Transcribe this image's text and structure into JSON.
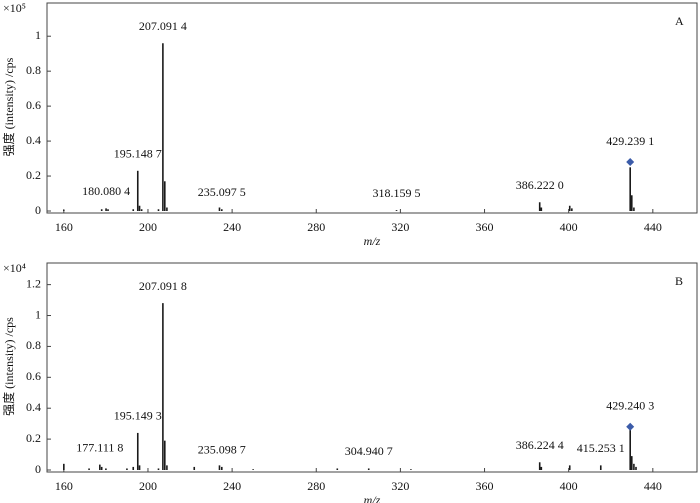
{
  "chart_data": [
    {
      "type": "spectrum",
      "panel_label": "A",
      "scale_label": "×10⁵",
      "y_label": "强度 (intensity) /cps",
      "x_label": "m/z",
      "xlim": [
        152,
        461
      ],
      "xticks": [
        160,
        200,
        240,
        280,
        320,
        360,
        400,
        440
      ],
      "ylim": [
        0,
        1.19
      ],
      "yticks": [
        0,
        0.2,
        0.4,
        0.6,
        0.8,
        1
      ],
      "color": "#1a1a1a",
      "x": [
        160,
        178,
        180.0804,
        181,
        193,
        195.1487,
        196,
        197,
        205,
        207.0914,
        208,
        209,
        234,
        235.0975,
        318.1595,
        386.222,
        387,
        400.5,
        401.5,
        429.2391,
        430,
        431
      ],
      "values": [
        0.005,
        0.01,
        0.015,
        0.01,
        0.01,
        0.23,
        0.03,
        0.01,
        0.01,
        0.96,
        0.17,
        0.02,
        0.02,
        0.01,
        0.005,
        0.05,
        0.02,
        0.03,
        0.015,
        0.25,
        0.09,
        0.02
      ],
      "peak_labels": [
        {
          "x": 180.0804,
          "label": "180.080 4"
        },
        {
          "x": 195.1487,
          "label": "195.148 7"
        },
        {
          "x": 207.0914,
          "label": "207.091 4"
        },
        {
          "x": 235.0975,
          "label": "235.097 5"
        },
        {
          "x": 318.1595,
          "label": "318.159 5"
        },
        {
          "x": 386.222,
          "label": "386.222 0"
        },
        {
          "x": 429.2391,
          "label": "429.239 1"
        }
      ],
      "marker": {
        "x": 429.2391,
        "value": 0.28,
        "color": "#3b5ba9"
      }
    },
    {
      "type": "spectrum",
      "panel_label": "B",
      "scale_label": "×10⁴",
      "y_label": "强度 (intensity) /cps",
      "x_label": "m/z",
      "xlim": [
        152,
        461
      ],
      "xticks": [
        160,
        200,
        240,
        280,
        320,
        360,
        400,
        440
      ],
      "ylim": [
        0,
        1.34
      ],
      "yticks": [
        0,
        0.2,
        0.4,
        0.6,
        0.8,
        1,
        1.2
      ],
      "color": "#1a1a1a",
      "x": [
        160,
        172,
        177.1118,
        178,
        180,
        190,
        193,
        195.1493,
        196,
        205,
        207.0918,
        208,
        209,
        222,
        234,
        235.0987,
        250,
        290,
        304.9407,
        325,
        386.2244,
        387,
        400.5,
        415.2531,
        429.2403,
        430,
        431,
        432
      ],
      "values": [
        0.04,
        0.01,
        0.035,
        0.02,
        0.01,
        0.01,
        0.02,
        0.24,
        0.03,
        0.01,
        1.08,
        0.19,
        0.03,
        0.02,
        0.03,
        0.02,
        0.005,
        0.01,
        0.01,
        0.005,
        0.05,
        0.02,
        0.03,
        0.03,
        0.27,
        0.09,
        0.04,
        0.02
      ],
      "peak_labels": [
        {
          "x": 177.1118,
          "label": "177.111 8"
        },
        {
          "x": 195.1493,
          "label": "195.149 3"
        },
        {
          "x": 207.0918,
          "label": "207.091 8"
        },
        {
          "x": 235.0987,
          "label": "235.098 7"
        },
        {
          "x": 304.9407,
          "label": "304.940 7"
        },
        {
          "x": 386.2244,
          "label": "386.224 4"
        },
        {
          "x": 415.2531,
          "label": "415.253 1"
        },
        {
          "x": 429.2403,
          "label": "429.240 3"
        }
      ],
      "marker": {
        "x": 429.2403,
        "value": 0.28,
        "color": "#3b5ba9"
      }
    }
  ]
}
